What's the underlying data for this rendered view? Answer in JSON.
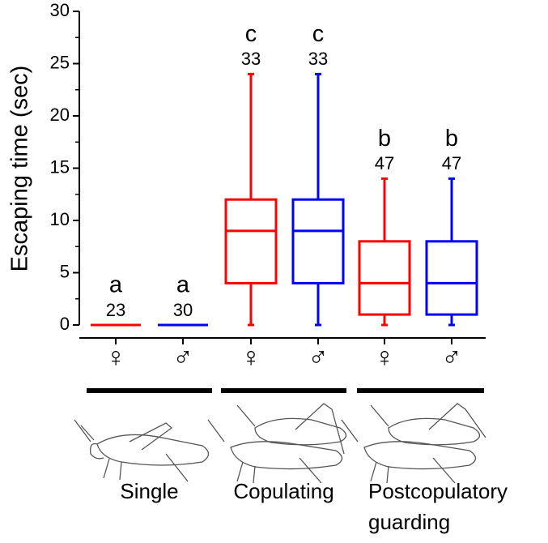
{
  "chart_data": {
    "type": "box",
    "y_label": "Escaping time (sec)",
    "ylim": [
      0,
      30
    ],
    "yticks": [
      0,
      5,
      10,
      15,
      20,
      25,
      30
    ],
    "minor_yticks": [
      2.5,
      7.5,
      12.5,
      17.5,
      22.5,
      27.5
    ],
    "categories": [
      "♀",
      "♂",
      "♀",
      "♂",
      "♀",
      "♂"
    ],
    "boxes": [
      {
        "min": 0,
        "q1": 0,
        "median": 0,
        "q3": 0,
        "max": 0,
        "n": 23,
        "letter": "a",
        "color": "#ff0000"
      },
      {
        "min": 0,
        "q1": 0,
        "median": 0,
        "q3": 0,
        "max": 0,
        "n": 30,
        "letter": "a",
        "color": "#0000ff"
      },
      {
        "min": 0,
        "q1": 4,
        "median": 9,
        "q3": 12,
        "max": 24,
        "n": 33,
        "letter": "c",
        "color": "#ff0000"
      },
      {
        "min": 0,
        "q1": 4,
        "median": 9,
        "q3": 12,
        "max": 24,
        "n": 33,
        "letter": "c",
        "color": "#0000ff"
      },
      {
        "min": 0,
        "q1": 1,
        "median": 4,
        "q3": 8,
        "max": 14,
        "n": 47,
        "letter": "b",
        "color": "#ff0000"
      },
      {
        "min": 0,
        "q1": 1,
        "median": 4,
        "q3": 8,
        "max": 14,
        "n": 47,
        "letter": "b",
        "color": "#0000ff"
      }
    ],
    "groups": [
      {
        "lines": [
          "Single"
        ]
      },
      {
        "lines": [
          "Copulating"
        ]
      },
      {
        "lines": [
          "Postcopulatory",
          "guarding"
        ]
      }
    ]
  }
}
